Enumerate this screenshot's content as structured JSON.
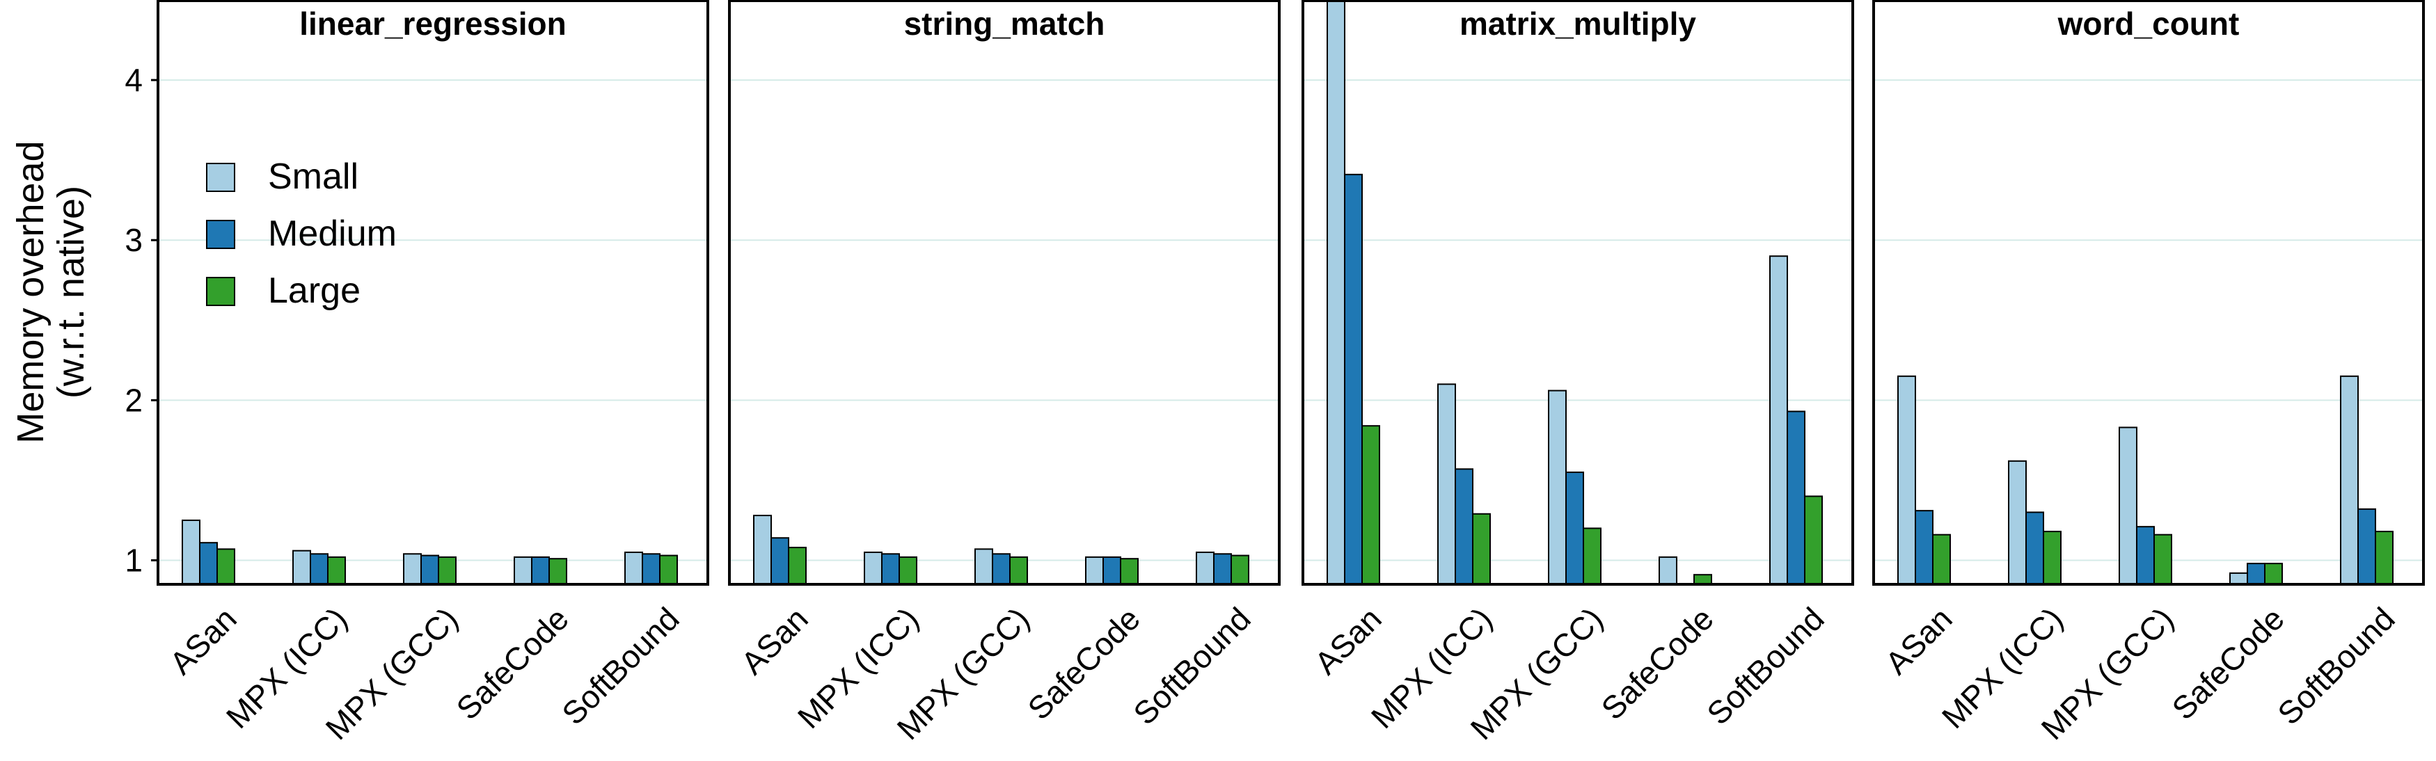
{
  "chart_data": {
    "type": "bar",
    "ylabel_line1": "Memory overhead",
    "ylabel_line2": "(w.r.t. native)",
    "ylim": [
      0.85,
      4.5
    ],
    "yticks": [
      1,
      2,
      3,
      4
    ],
    "grid": true,
    "legend_position": "upper-left",
    "categories": [
      "ASan",
      "MPX (ICC)",
      "MPX (GCC)",
      "SafeCode",
      "SoftBound"
    ],
    "series_colors": {
      "Small": "#a6cee3",
      "Medium": "#1f78b4",
      "Large": "#33a02c"
    },
    "legend": [
      "Small",
      "Medium",
      "Large"
    ],
    "panels": [
      {
        "title": "linear_regression",
        "series": [
          {
            "name": "Small",
            "values": [
              1.25,
              1.06,
              1.04,
              1.02,
              1.05
            ]
          },
          {
            "name": "Medium",
            "values": [
              1.11,
              1.04,
              1.03,
              1.02,
              1.04
            ]
          },
          {
            "name": "Large",
            "values": [
              1.07,
              1.02,
              1.02,
              1.01,
              1.03
            ]
          }
        ]
      },
      {
        "title": "string_match",
        "series": [
          {
            "name": "Small",
            "values": [
              1.28,
              1.05,
              1.07,
              1.02,
              1.05
            ]
          },
          {
            "name": "Medium",
            "values": [
              1.14,
              1.04,
              1.04,
              1.02,
              1.04
            ]
          },
          {
            "name": "Large",
            "values": [
              1.08,
              1.02,
              1.02,
              1.01,
              1.03
            ]
          }
        ]
      },
      {
        "title": "matrix_multiply",
        "series": [
          {
            "name": "Small",
            "values": [
              4.6,
              2.1,
              2.06,
              1.02,
              2.9
            ]
          },
          {
            "name": "Medium",
            "values": [
              3.41,
              1.57,
              1.55,
              null,
              1.93
            ]
          },
          {
            "name": "Large",
            "values": [
              1.84,
              1.29,
              1.2,
              0.91,
              1.4
            ]
          }
        ]
      },
      {
        "title": "word_count",
        "series": [
          {
            "name": "Small",
            "values": [
              2.15,
              1.62,
              1.83,
              0.92,
              2.15
            ]
          },
          {
            "name": "Medium",
            "values": [
              1.31,
              1.3,
              1.21,
              0.98,
              1.32
            ]
          },
          {
            "name": "Large",
            "values": [
              1.16,
              1.18,
              1.16,
              0.98,
              1.18
            ]
          }
        ]
      }
    ]
  }
}
